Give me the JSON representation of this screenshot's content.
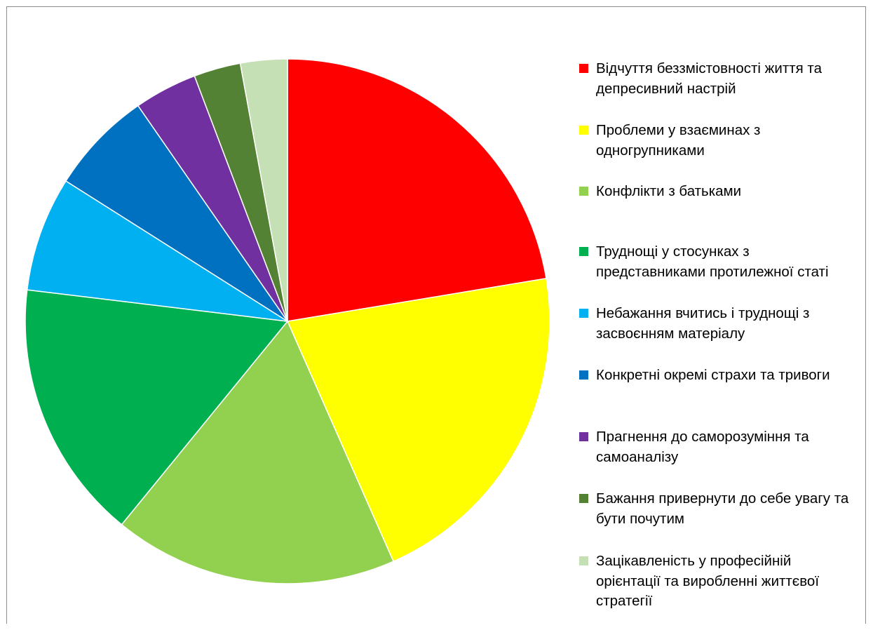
{
  "chart_data": {
    "type": "pie",
    "title": "",
    "legend_position": "right",
    "start_angle_deg": 0,
    "direction": "clockwise",
    "slices": [
      {
        "label": "Відчуття беззмістовності життя та депресивний настрій",
        "value": 22.5,
        "color": "#FF0000"
      },
      {
        "label": "Проблеми у взаєминах з одногрупниками",
        "value": 21.1,
        "color": "#FFFF00"
      },
      {
        "label": "Конфлікти з батьками",
        "value": 17.6,
        "color": "#92D050"
      },
      {
        "label": "Труднощі у стосунках з представниками протилежної статі",
        "value": 16.1,
        "color": "#00B050"
      },
      {
        "label": "Небажання вчитись і труднощі з засвоєнням матеріалу",
        "value": 7.1,
        "color": "#00B0F0"
      },
      {
        "label": "Конкретні окремі страхи та тривоги",
        "value": 6.4,
        "color": "#0070C0"
      },
      {
        "label": "Прагнення до саморозуміння та самоаналізу",
        "value": 3.9,
        "color": "#7030A0"
      },
      {
        "label": "Бажання привернути до себе увагу та бути почутим",
        "value": 2.9,
        "color": "#548235"
      },
      {
        "label": "Зацікавленість у професійній орієнтації та виробленні життєвої стратегії",
        "value": 2.9,
        "color": "#C5E0B4"
      }
    ]
  }
}
